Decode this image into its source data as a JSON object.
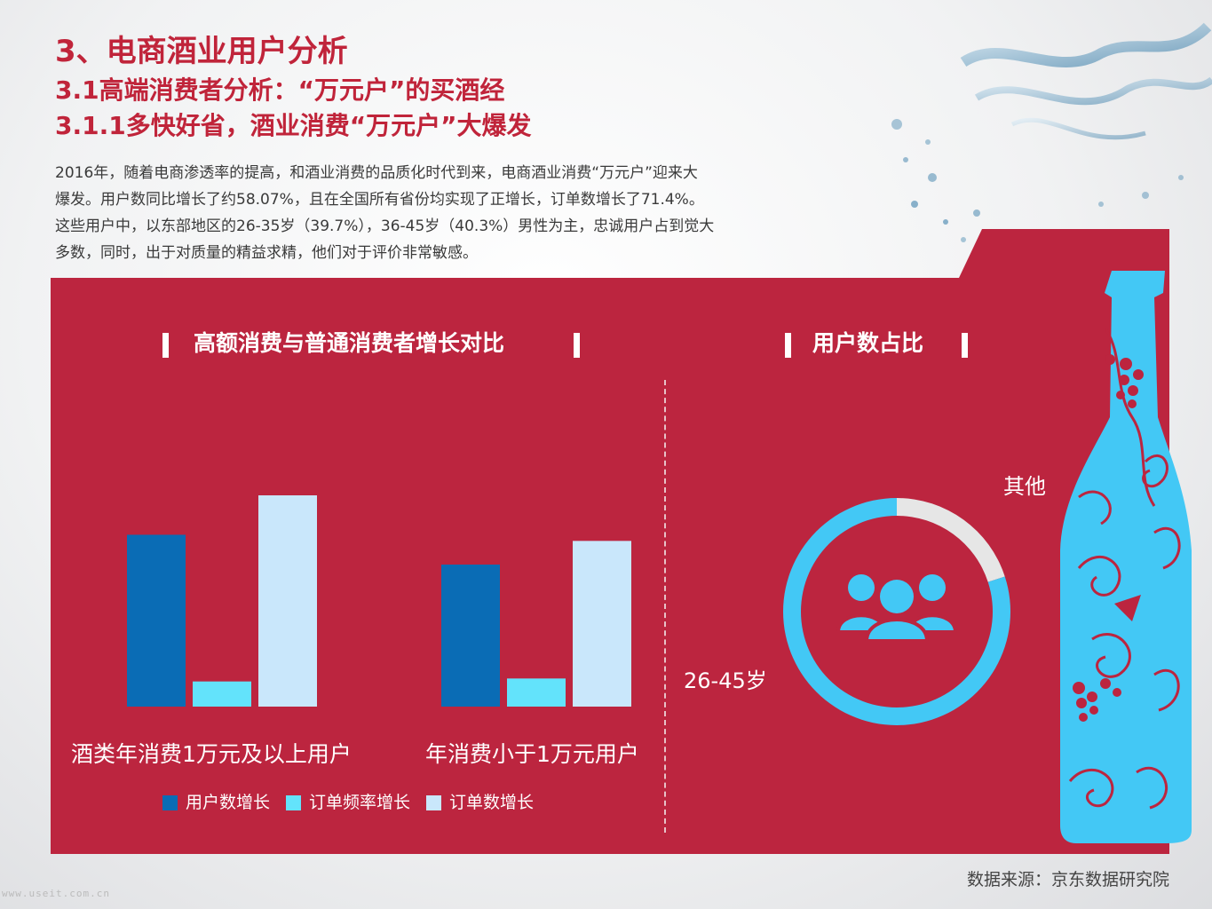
{
  "header": {
    "title": "3、电商酒业用户分析",
    "subtitle1": "3.1高端消费者分析：“万元户”的买酒经",
    "subtitle2": "3.1.1多快好省，酒业消费“万元户”大爆发"
  },
  "intro": {
    "line1": "2016年，随着电商渗透率的提高，和酒业消费的品质化时代到来，电商酒业消费“万元户”迎来大",
    "line2": "爆发。用户数同比增长了约58.07%，且在全国所有省份均实现了正增长，订单数增长了71.4%。",
    "line3": "这些用户中，以东部地区的26-35岁（39.7%），36-45岁（40.3%）男性为主，忠诚用户占到觉大",
    "line4": "多数，同时，出于对质量的精益求精，他们对于评价非常敏感。"
  },
  "colors": {
    "panel": "#bc253f",
    "user_growth": "#0a6cb5",
    "order_freq_growth": "#63e3fb",
    "order_growth": "#c9e7fb",
    "ring_main": "#43c8f5",
    "ring_other": "#e6e6e6",
    "title": "#c0243a"
  },
  "chart_data": [
    {
      "type": "bar",
      "title": "高额消费与普通消费者增长对比",
      "categories": [
        "酒类年消费1万元及以上用户",
        "年消费小于1万元用户"
      ],
      "series": [
        {
          "name": "用户数增长",
          "values": [
            58.07,
            48
          ]
        },
        {
          "name": "订单频率增长",
          "values": [
            8.5,
            9.5
          ]
        },
        {
          "name": "订单数增长",
          "values": [
            71.4,
            56
          ]
        }
      ],
      "ylim": [
        0,
        75
      ],
      "grid": false,
      "legend": "bottom"
    },
    {
      "type": "pie",
      "title": "用户数占比",
      "labels": [
        "26-45岁",
        "其他"
      ],
      "values": [
        80,
        20
      ],
      "icon": "users-group-icon"
    }
  ],
  "footer": {
    "source": "数据来源：京东数据研究院",
    "watermark": "www.useit.com.cn"
  }
}
